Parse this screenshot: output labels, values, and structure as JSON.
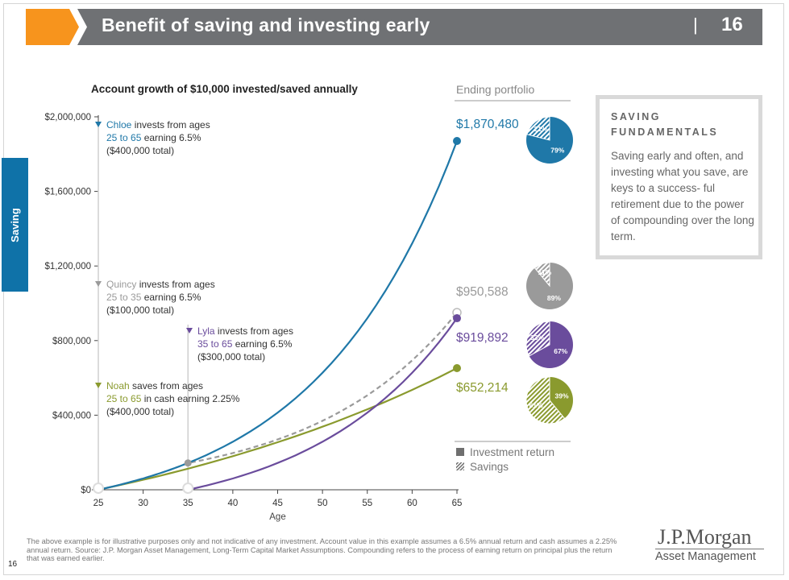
{
  "header": {
    "title": "Benefit of saving and investing early",
    "page_number": "16",
    "colors": {
      "bar": "#6f7174",
      "accent": "#f7941d"
    }
  },
  "side_tab": {
    "label": "Saving",
    "color": "#0f72a8"
  },
  "chart_data": {
    "type": "line",
    "title": "Account growth of $10,000 invested/saved annually",
    "xlabel": "Age",
    "ylabel": "",
    "xlim": [
      25,
      65
    ],
    "ylim": [
      0,
      2000000
    ],
    "x_ticks": [
      25,
      30,
      35,
      40,
      45,
      50,
      55,
      60,
      65
    ],
    "y_ticks": [
      {
        "value": 0,
        "label": "$0"
      },
      {
        "value": 400000,
        "label": "$400,000"
      },
      {
        "value": 800000,
        "label": "$800,000"
      },
      {
        "value": 1200000,
        "label": "$1,200,000"
      },
      {
        "value": 1600000,
        "label": "$1,600,000"
      },
      {
        "value": 2000000,
        "label": "$2,000,000"
      }
    ],
    "series": [
      {
        "name": "Chloe",
        "color": "#1f78a8",
        "dashed": false,
        "start_age": 25,
        "rate": 0.065,
        "contrib_until": 65,
        "end_value": 1870480,
        "label_lines": [
          [
            {
              "t": "Chloe",
              "c": "color"
            },
            {
              "t": " invests from ages",
              "c": "text"
            }
          ],
          [
            {
              "t": "25 to 65",
              "c": "color"
            },
            {
              "t": " earning 6.5%",
              "c": "text"
            }
          ],
          [
            {
              "t": "($400,000 total)",
              "c": "text"
            }
          ]
        ]
      },
      {
        "name": "Quincy",
        "color": "#9a9a9a",
        "dashed": true,
        "start_age": 25,
        "rate": 0.065,
        "contrib_until": 35,
        "end_value": 950588,
        "label_lines": [
          [
            {
              "t": "Quincy",
              "c": "color"
            },
            {
              "t": " invests from ages",
              "c": "text"
            }
          ],
          [
            {
              "t": "25 to 35",
              "c": "color"
            },
            {
              "t": " earning 6.5%",
              "c": "text"
            }
          ],
          [
            {
              "t": "($100,000 total)",
              "c": "text"
            }
          ]
        ]
      },
      {
        "name": "Lyla",
        "color": "#6a4c9c",
        "dashed": false,
        "start_age": 35,
        "rate": 0.065,
        "contrib_until": 65,
        "end_value": 919892,
        "label_lines": [
          [
            {
              "t": "Lyla",
              "c": "color"
            },
            {
              "t": " invests from ages",
              "c": "text"
            }
          ],
          [
            {
              "t": "35 to 65",
              "c": "color"
            },
            {
              "t": " earning 6.5%",
              "c": "text"
            }
          ],
          [
            {
              "t": "($300,000 total)",
              "c": "text"
            }
          ]
        ]
      },
      {
        "name": "Noah",
        "color": "#8a9a2e",
        "dashed": false,
        "start_age": 25,
        "rate": 0.0225,
        "contrib_until": 65,
        "end_value": 652214,
        "label_lines": [
          [
            {
              "t": "Noah",
              "c": "color"
            },
            {
              "t": " saves from ages",
              "c": "text"
            }
          ],
          [
            {
              "t": "25 to 65",
              "c": "color"
            },
            {
              "t": " in cash earning 2.25%",
              "c": "text"
            }
          ],
          [
            {
              "t": "($400,000 total)",
              "c": "text"
            }
          ]
        ]
      }
    ]
  },
  "ending_portfolio": {
    "title": "Ending portfolio",
    "items": [
      {
        "series": "Chloe",
        "value_label": "$1,870,480",
        "color": "#1f78a8",
        "investment_return_pct": 79,
        "savings_pct": 21
      },
      {
        "series": "Quincy",
        "value_label": "$950,588",
        "color": "#9a9a9a",
        "investment_return_pct": 89,
        "savings_pct": 11
      },
      {
        "series": "Lyla",
        "value_label": "$919,892",
        "color": "#6a4c9c",
        "investment_return_pct": 67,
        "savings_pct": 33
      },
      {
        "series": "Noah",
        "value_label": "$652,214",
        "color": "#8a9a2e",
        "investment_return_pct": 39,
        "savings_pct": 61
      }
    ],
    "legend": {
      "investment_return": "Investment return",
      "savings": "Savings"
    }
  },
  "fundamentals": {
    "title": "SAVING FUNDAMENTALS",
    "text": "Saving early and often, and investing what you save, are keys to a success- ful retirement due to the power of compounding over the long term."
  },
  "footnote": "The above example is for illustrative purposes only and not indicative of any investment. Account value in this example assumes a 6.5% annual return and cash assumes a 2.25% annual return. Source: J.P. Morgan Asset Management, Long-Term Capital Market Assumptions. Compounding refers to the process of earning return on principal plus the return that was earned earlier.",
  "page_number_bottom": "16",
  "logo": {
    "line1": "J.P.Morgan",
    "line2": "Asset Management"
  }
}
